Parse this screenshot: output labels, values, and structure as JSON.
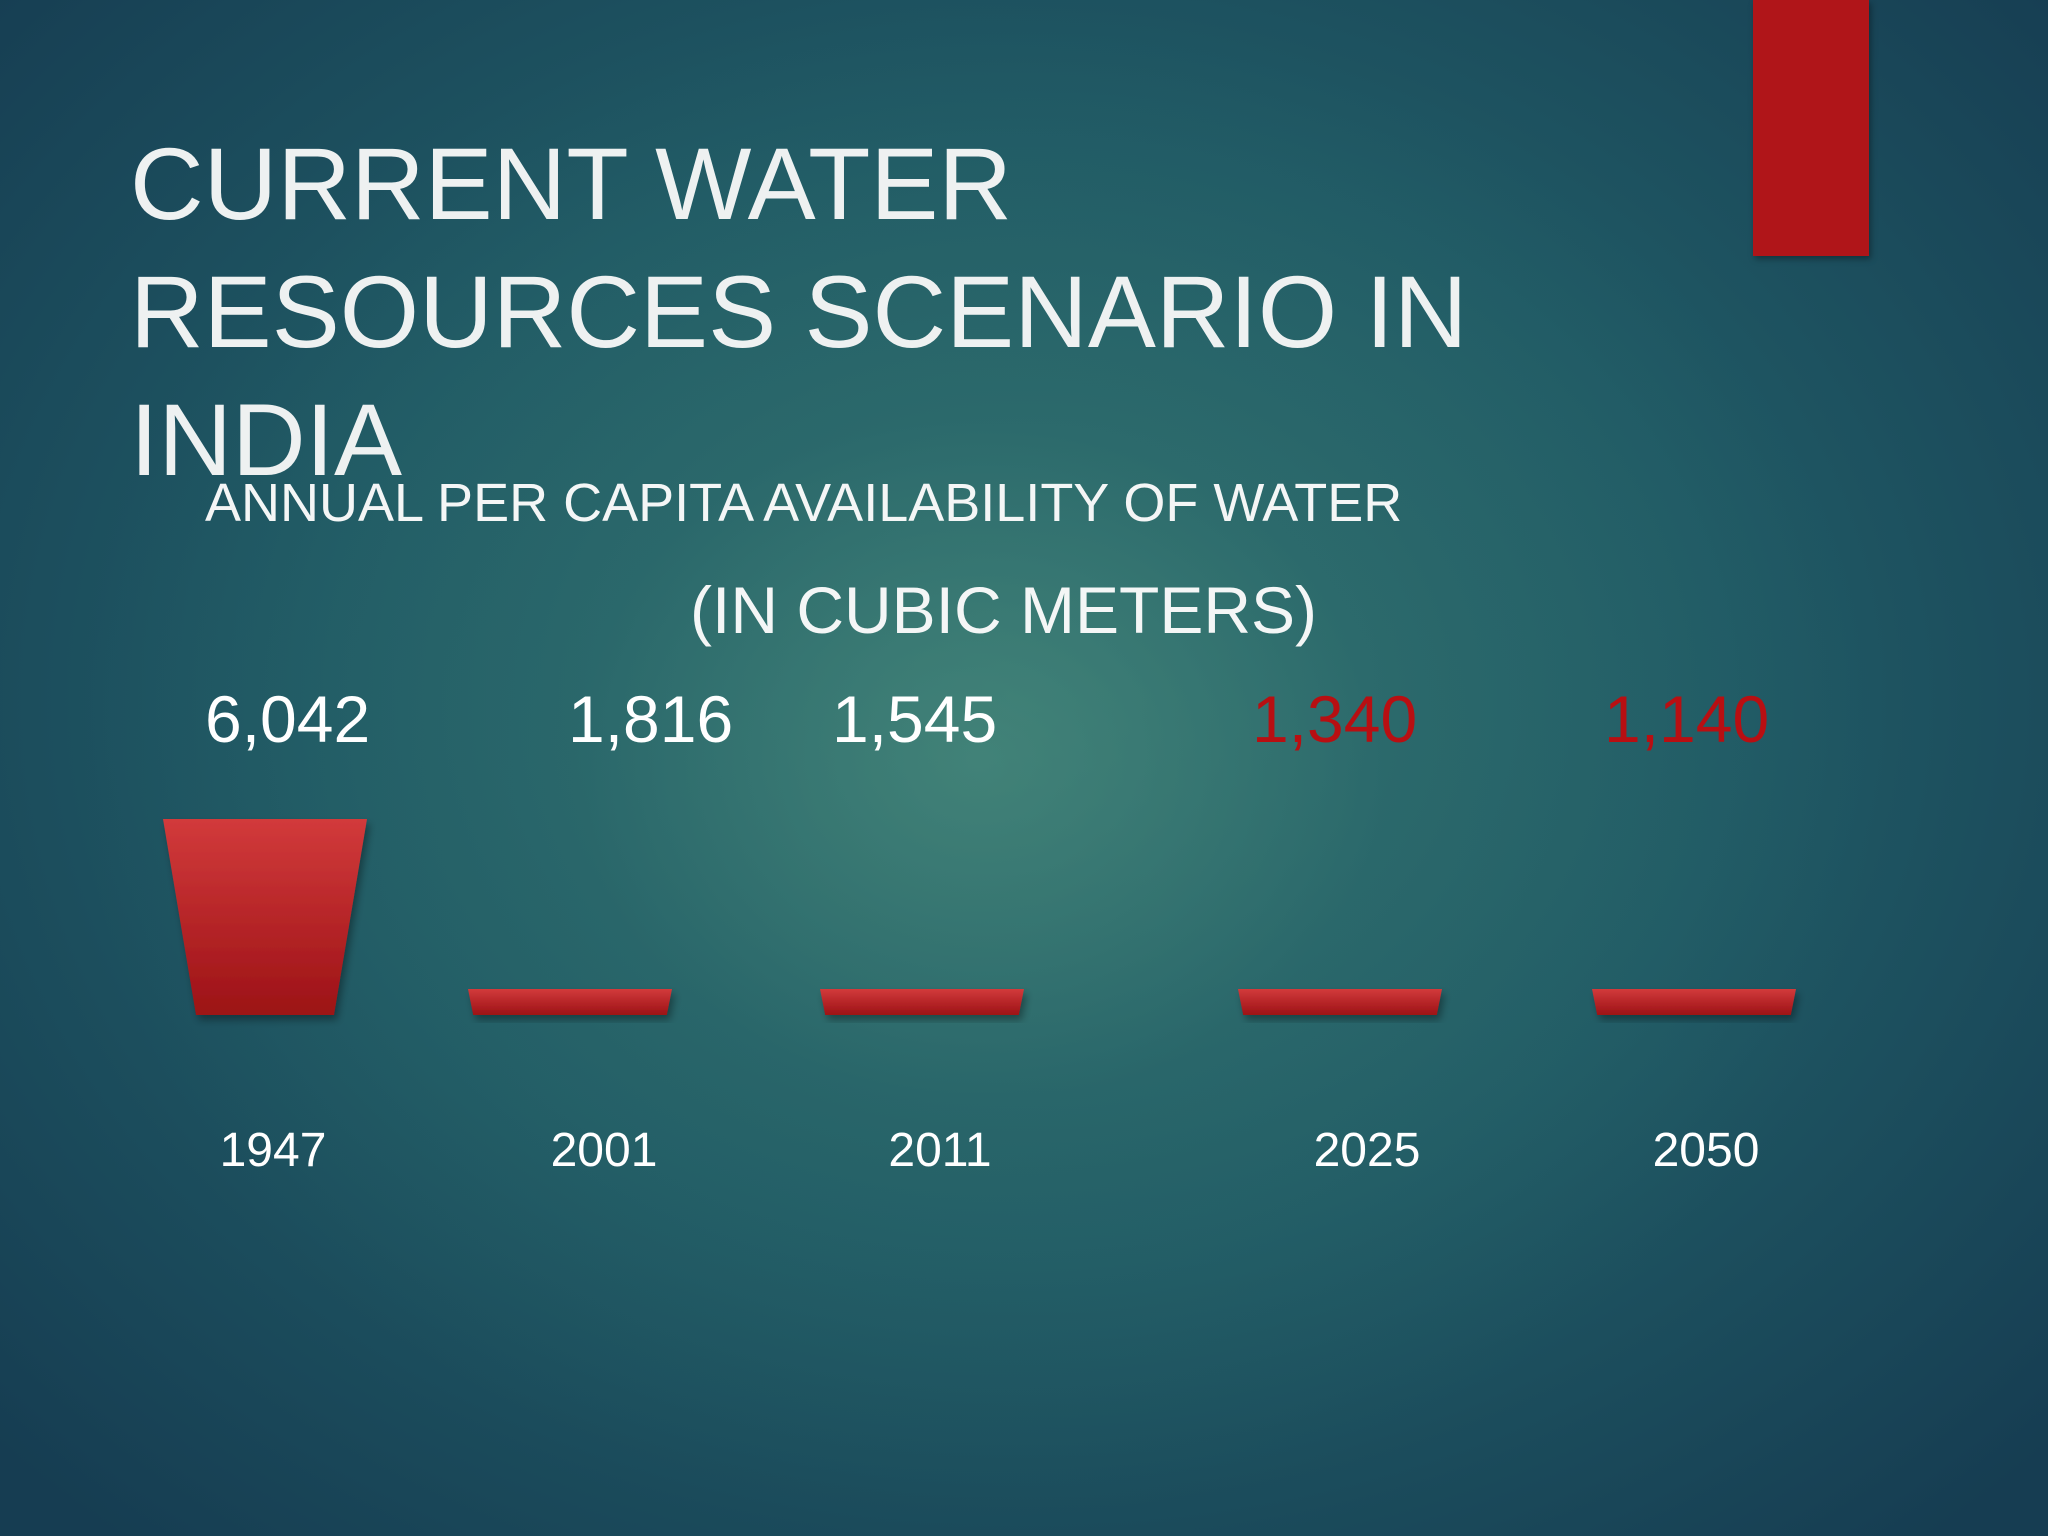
{
  "slide": {
    "title_lines": [
      "CURRENT WATER",
      "RESOURCES SCENARIO IN",
      "INDIA"
    ]
  },
  "colors": {
    "accent": "#b01519",
    "projection_label": "#b80f12",
    "bucket_top": "#d23a3b",
    "bucket_bottom": "#9c1216"
  },
  "chart_data": {
    "type": "bar",
    "title": "ANNUAL PER CAPITA AVAILABILITY OF WATER",
    "subtitle": "(IN CUBIC METERS)",
    "categories": [
      "1947",
      "2001",
      "2011",
      "2025",
      "2050"
    ],
    "values": [
      6042,
      1816,
      1545,
      1340,
      1140
    ],
    "value_labels": [
      "6,042",
      "1,816",
      "1,545",
      "1,340",
      "1,140"
    ],
    "projected": [
      false,
      false,
      false,
      true,
      true
    ],
    "grid": false,
    "legend": "none"
  }
}
